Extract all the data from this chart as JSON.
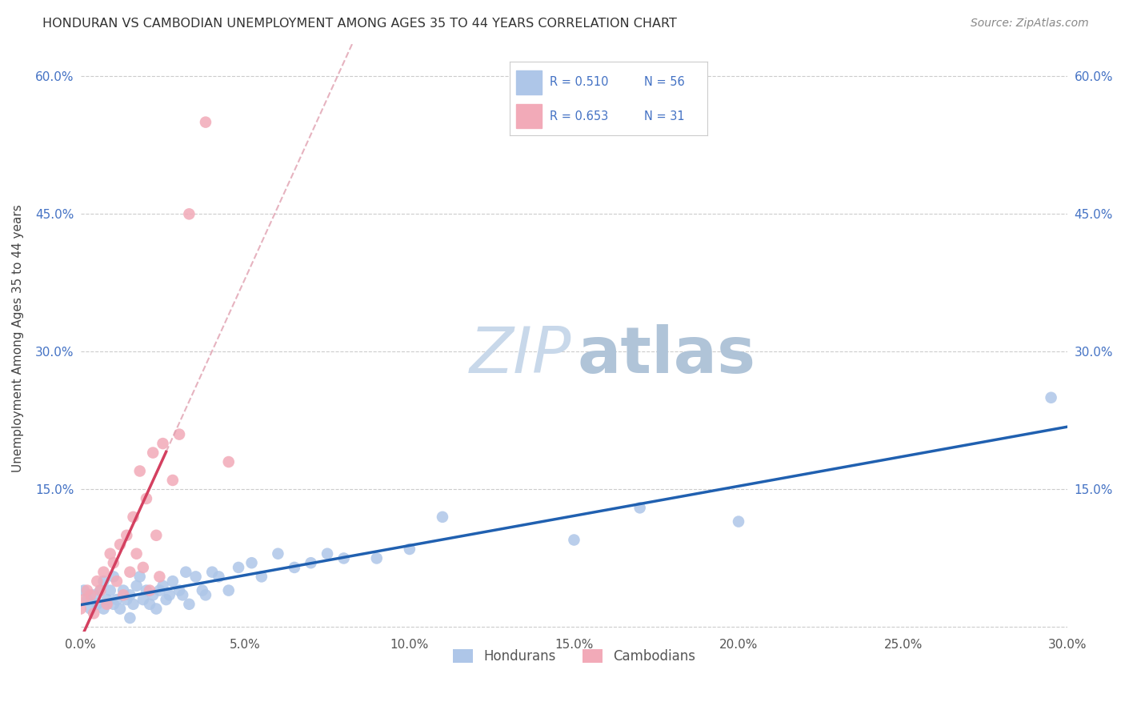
{
  "title": "HONDURAN VS CAMBODIAN UNEMPLOYMENT AMONG AGES 35 TO 44 YEARS CORRELATION CHART",
  "source": "Source: ZipAtlas.com",
  "ylabel": "Unemployment Among Ages 35 to 44 years",
  "xlim": [
    0.0,
    0.3
  ],
  "ylim": [
    -0.005,
    0.635
  ],
  "xticks": [
    0.0,
    0.05,
    0.1,
    0.15,
    0.2,
    0.25,
    0.3
  ],
  "yticks": [
    0.0,
    0.15,
    0.3,
    0.45,
    0.6
  ],
  "xtick_labels": [
    "0.0%",
    "5.0%",
    "10.0%",
    "15.0%",
    "20.0%",
    "25.0%",
    "30.0%"
  ],
  "ytick_labels_left": [
    "",
    "15.0%",
    "30.0%",
    "45.0%",
    "60.0%"
  ],
  "ytick_labels_right": [
    "",
    "15.0%",
    "30.0%",
    "45.0%",
    "60.0%"
  ],
  "blue_color": "#aec6e8",
  "pink_color": "#f2aab8",
  "blue_line_color": "#2060b0",
  "pink_line_color": "#d44060",
  "pink_dashed_color": "#e0a0b0",
  "watermark_zip_color": "#c8d8ea",
  "watermark_atlas_color": "#b0c4d8",
  "hondurans_x": [
    0.001,
    0.002,
    0.003,
    0.004,
    0.005,
    0.006,
    0.007,
    0.007,
    0.008,
    0.009,
    0.01,
    0.01,
    0.011,
    0.012,
    0.013,
    0.014,
    0.015,
    0.015,
    0.016,
    0.017,
    0.018,
    0.019,
    0.02,
    0.021,
    0.022,
    0.023,
    0.024,
    0.025,
    0.026,
    0.027,
    0.028,
    0.03,
    0.031,
    0.032,
    0.033,
    0.035,
    0.037,
    0.038,
    0.04,
    0.042,
    0.045,
    0.048,
    0.052,
    0.055,
    0.06,
    0.065,
    0.07,
    0.075,
    0.08,
    0.09,
    0.1,
    0.11,
    0.15,
    0.17,
    0.2,
    0.295
  ],
  "hondurans_y": [
    0.04,
    0.03,
    0.02,
    0.035,
    0.025,
    0.04,
    0.02,
    0.05,
    0.03,
    0.04,
    0.025,
    0.055,
    0.03,
    0.02,
    0.04,
    0.03,
    0.035,
    0.01,
    0.025,
    0.045,
    0.055,
    0.03,
    0.04,
    0.025,
    0.035,
    0.02,
    0.04,
    0.045,
    0.03,
    0.035,
    0.05,
    0.04,
    0.035,
    0.06,
    0.025,
    0.055,
    0.04,
    0.035,
    0.06,
    0.055,
    0.04,
    0.065,
    0.07,
    0.055,
    0.08,
    0.065,
    0.07,
    0.08,
    0.075,
    0.075,
    0.085,
    0.12,
    0.095,
    0.13,
    0.115,
    0.25
  ],
  "cambodians_x": [
    0.0,
    0.001,
    0.002,
    0.003,
    0.004,
    0.005,
    0.006,
    0.007,
    0.008,
    0.009,
    0.01,
    0.011,
    0.012,
    0.013,
    0.014,
    0.015,
    0.016,
    0.017,
    0.018,
    0.019,
    0.02,
    0.021,
    0.022,
    0.023,
    0.024,
    0.025,
    0.028,
    0.03,
    0.033,
    0.038,
    0.045
  ],
  "cambodians_y": [
    0.02,
    0.03,
    0.04,
    0.035,
    0.015,
    0.05,
    0.04,
    0.06,
    0.025,
    0.08,
    0.07,
    0.05,
    0.09,
    0.035,
    0.1,
    0.06,
    0.12,
    0.08,
    0.17,
    0.065,
    0.14,
    0.04,
    0.19,
    0.1,
    0.055,
    0.2,
    0.16,
    0.21,
    0.45,
    0.55,
    0.18
  ],
  "blue_R": "0.510",
  "blue_N": "56",
  "pink_R": "0.653",
  "pink_N": "31"
}
